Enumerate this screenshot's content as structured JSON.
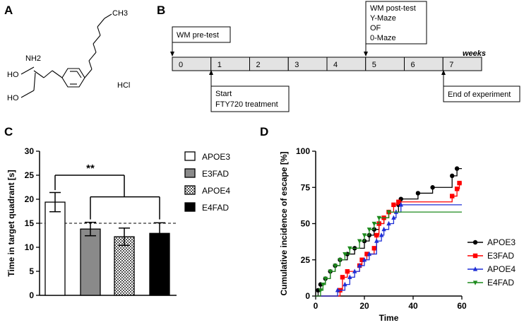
{
  "panel_labels": {
    "a": "A",
    "b": "B",
    "c": "C",
    "d": "D"
  },
  "structure": {
    "methyl": "CH3",
    "amine": "NH2",
    "hydroxyl_top": "HO",
    "hydroxyl_bottom": "HO",
    "salt": "HCl"
  },
  "timeline": {
    "weeks_label": "weeks",
    "week_numbers": [
      "0",
      "1",
      "2",
      "3",
      "4",
      "5",
      "6",
      "7"
    ],
    "pretest_label": "WM pre-test",
    "posttest_lines": [
      "WM post-test",
      "Y-Maze",
      "OF",
      "0-Maze"
    ],
    "start_lines": [
      "Start",
      "FTY720 treatment"
    ],
    "end_label": "End of experiment"
  },
  "colors": {
    "apoe3": "#000000",
    "e3fad": "#ff0000",
    "apoe4": "#1f2fd6",
    "e4fad": "#1d8a1d",
    "box_fill": "#e3e3e3",
    "bar_gray": "#8a8a8a"
  },
  "chart_data": [
    {
      "type": "bar",
      "panel": "C",
      "categories": [
        "APOE3",
        "E3FAD",
        "APOE4",
        "E4FAD"
      ],
      "values": [
        19.4,
        13.8,
        12.2,
        12.9
      ],
      "errors": [
        2.0,
        1.4,
        1.8,
        2.2
      ],
      "fills": [
        "white",
        "gray",
        "checker",
        "black"
      ],
      "ylabel": "Time in  target quadrant [s]",
      "xlabel": "",
      "ylim": [
        0,
        30
      ],
      "yticks": [
        0,
        5,
        10,
        15,
        20,
        25,
        30
      ],
      "reference_line": 15,
      "significance": "**",
      "legend": [
        "APOE3",
        "E3FAD",
        "APOE4",
        "E4FAD"
      ],
      "legend_position": "right"
    },
    {
      "type": "line",
      "panel": "D",
      "xlabel": "Time",
      "ylabel": "Cumulative incidence of escape [%]",
      "xlim": [
        0,
        60
      ],
      "ylim": [
        0,
        100
      ],
      "xticks": [
        0,
        20,
        40,
        60
      ],
      "yticks": [
        0,
        25,
        50,
        75,
        100
      ],
      "legend_position": "bottom-right",
      "series": [
        {
          "name": "APOE3",
          "marker": "circle",
          "x": [
            0,
            1,
            2,
            4,
            6,
            8,
            10,
            13,
            16,
            20,
            22,
            24,
            26,
            28,
            30,
            34,
            35,
            42,
            48,
            56,
            58,
            60
          ],
          "y": [
            0,
            4,
            8,
            12,
            17,
            21,
            25,
            29,
            33,
            38,
            42,
            46,
            50,
            54,
            58,
            63,
            67,
            71,
            75,
            83,
            88,
            88
          ]
        },
        {
          "name": "E3FAD",
          "marker": "square",
          "x": [
            0,
            9,
            10,
            11,
            13,
            18,
            19,
            21,
            24,
            25,
            26,
            28,
            30,
            32,
            34,
            48,
            56,
            58,
            59,
            60
          ],
          "y": [
            0,
            0,
            4,
            13,
            17,
            21,
            25,
            29,
            33,
            42,
            50,
            54,
            58,
            63,
            65,
            65,
            69,
            74,
            78,
            78
          ]
        },
        {
          "name": "APOE4",
          "marker": "triangle-up",
          "x": [
            0,
            6,
            9,
            12,
            14,
            16,
            18,
            20,
            22,
            25,
            27,
            28,
            30,
            32,
            33,
            35,
            44,
            54,
            57,
            58,
            60
          ],
          "y": [
            0,
            0,
            4,
            8,
            13,
            17,
            21,
            25,
            29,
            38,
            42,
            46,
            50,
            54,
            58,
            63,
            63,
            63,
            63,
            63,
            63
          ]
        },
        {
          "name": "E4FAD",
          "marker": "triangle-down",
          "x": [
            0,
            2,
            3,
            4,
            6,
            8,
            10,
            12,
            14,
            18,
            20,
            22,
            24,
            26,
            30,
            36,
            44,
            56,
            60
          ],
          "y": [
            0,
            4,
            8,
            12,
            17,
            21,
            25,
            29,
            33,
            38,
            42,
            46,
            50,
            54,
            58,
            58,
            58,
            58,
            58
          ]
        }
      ]
    }
  ]
}
